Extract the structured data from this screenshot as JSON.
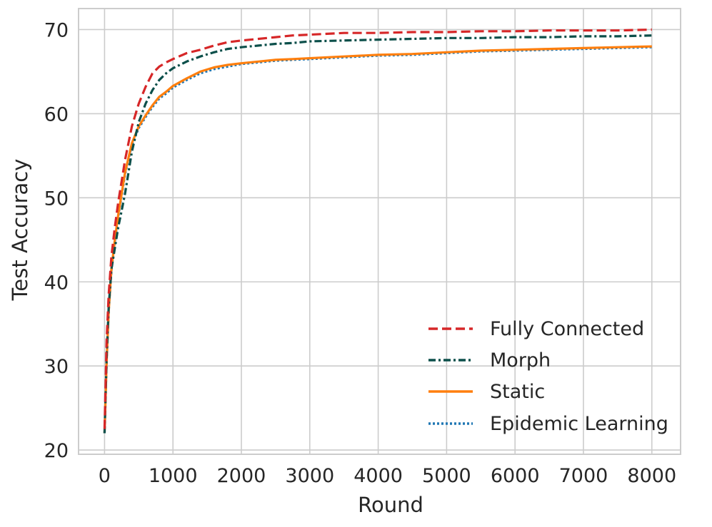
{
  "chart_data": {
    "type": "line",
    "title": "",
    "xlabel": "Round",
    "ylabel": "Test Accuracy",
    "xlim": [
      -380,
      8420
    ],
    "ylim": [
      19.5,
      72.5
    ],
    "xticks": [
      "0",
      "1000",
      "2000",
      "3000",
      "4000",
      "5000",
      "6000",
      "7000",
      "8000"
    ],
    "yticks": [
      "20",
      "30",
      "40",
      "50",
      "60",
      "70"
    ],
    "grid": true,
    "legend_position": "lower-right",
    "series": [
      {
        "name": "Fully Connected",
        "color": "#d62728",
        "style": "dashed",
        "x": [
          0,
          30,
          60,
          100,
          150,
          200,
          250,
          300,
          400,
          500,
          600,
          700,
          800,
          900,
          1000,
          1200,
          1400,
          1600,
          1800,
          2000,
          2250,
          2500,
          2750,
          3000,
          3500,
          4000,
          4500,
          5000,
          5500,
          6000,
          6500,
          7000,
          7500,
          8000
        ],
        "values": [
          22.5,
          33,
          38.5,
          43,
          46.5,
          49.5,
          52,
          54.5,
          58.5,
          61.2,
          63.2,
          64.8,
          65.6,
          66.1,
          66.5,
          67.2,
          67.6,
          68.1,
          68.5,
          68.7,
          68.9,
          69.1,
          69.3,
          69.4,
          69.6,
          69.6,
          69.7,
          69.7,
          69.8,
          69.8,
          69.9,
          69.9,
          69.9,
          70.0
        ]
      },
      {
        "name": "Morph",
        "color": "#0b4f4a",
        "style": "dashdot",
        "x": [
          0,
          30,
          60,
          100,
          150,
          200,
          250,
          300,
          400,
          500,
          600,
          700,
          800,
          900,
          1000,
          1200,
          1400,
          1600,
          1800,
          2000,
          2250,
          2500,
          2750,
          3000,
          3500,
          4000,
          4500,
          5000,
          5500,
          6000,
          6500,
          7000,
          7500,
          8000
        ],
        "values": [
          22.0,
          31,
          37,
          41.5,
          44,
          46.5,
          48.5,
          50.5,
          55.5,
          59,
          61.2,
          62.8,
          64,
          64.8,
          65.4,
          66.2,
          66.8,
          67.3,
          67.7,
          67.9,
          68.1,
          68.3,
          68.4,
          68.6,
          68.7,
          68.8,
          68.9,
          69.0,
          69.0,
          69.1,
          69.1,
          69.2,
          69.2,
          69.3
        ]
      },
      {
        "name": "Static",
        "color": "#ff7f0e",
        "style": "solid",
        "x": [
          0,
          30,
          60,
          100,
          150,
          200,
          250,
          300,
          400,
          500,
          600,
          700,
          800,
          900,
          1000,
          1200,
          1400,
          1600,
          1800,
          2000,
          2250,
          2500,
          2750,
          3000,
          3500,
          4000,
          4500,
          5000,
          5500,
          6000,
          6500,
          7000,
          7500,
          8000
        ],
        "values": [
          22.0,
          30.5,
          36.5,
          41.5,
          45,
          48,
          50.5,
          53,
          56.5,
          58.5,
          59.8,
          61,
          62,
          62.6,
          63.3,
          64.2,
          65.0,
          65.5,
          65.8,
          66.0,
          66.2,
          66.4,
          66.5,
          66.6,
          66.8,
          67.0,
          67.1,
          67.3,
          67.5,
          67.6,
          67.7,
          67.8,
          67.9,
          68.0
        ]
      },
      {
        "name": "Epidemic Learning",
        "color": "#1f77b4",
        "style": "dotted",
        "x": [
          0,
          30,
          60,
          100,
          150,
          200,
          250,
          300,
          400,
          500,
          600,
          700,
          800,
          900,
          1000,
          1200,
          1400,
          1600,
          1800,
          2000,
          2250,
          2500,
          2750,
          3000,
          3500,
          4000,
          4500,
          5000,
          5500,
          6000,
          6500,
          7000,
          7500,
          8000
        ],
        "values": [
          22.0,
          30.5,
          36.5,
          41.3,
          44.8,
          47.8,
          50.3,
          52.8,
          56.3,
          58.3,
          59.6,
          60.8,
          61.8,
          62.4,
          63.1,
          64.0,
          64.8,
          65.3,
          65.6,
          65.9,
          66.1,
          66.3,
          66.4,
          66.5,
          66.7,
          66.9,
          67.0,
          67.2,
          67.4,
          67.5,
          67.6,
          67.7,
          67.8,
          67.9
        ]
      }
    ]
  }
}
